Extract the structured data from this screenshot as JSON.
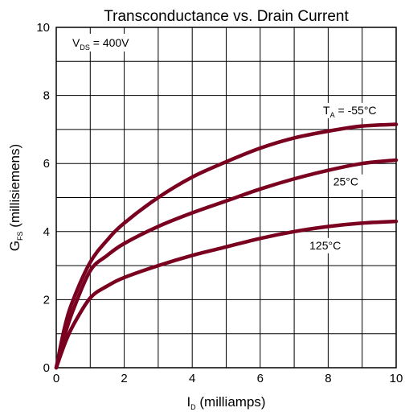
{
  "chart_data": {
    "type": "line",
    "title": "Transconductance vs. Drain Current",
    "xlabel": {
      "main": "I",
      "sub": "D",
      "rest": " (milliamps)"
    },
    "ylabel": {
      "main": "G",
      "sub": "FS",
      "rest": " (millisiemens)"
    },
    "xlim": [
      0,
      10
    ],
    "ylim": [
      0,
      10
    ],
    "x_ticks": [
      "0",
      "2",
      "4",
      "6",
      "8",
      "10"
    ],
    "y_ticks": [
      "0",
      "2",
      "4",
      "6",
      "8",
      "10"
    ],
    "grid": true,
    "condition": {
      "main": "V",
      "sub": "DS",
      "rest": " = 400V"
    },
    "series": [
      {
        "name": "-55°C",
        "label": {
          "main": "T",
          "sub": "A",
          "rest": " = -55°C"
        },
        "x": [
          0,
          0.25,
          0.5,
          1,
          1.5,
          2,
          3,
          4,
          5,
          6,
          7,
          8,
          9,
          10
        ],
        "y": [
          0,
          1.2,
          2.0,
          3.1,
          3.75,
          4.25,
          5.0,
          5.6,
          6.05,
          6.45,
          6.75,
          6.95,
          7.1,
          7.15
        ]
      },
      {
        "name": "25°C",
        "label": {
          "main": "25°C",
          "sub": "",
          "rest": ""
        },
        "x": [
          0,
          0.25,
          0.5,
          1,
          1.5,
          2,
          3,
          4,
          5,
          6,
          7,
          8,
          9,
          10
        ],
        "y": [
          0,
          0.95,
          1.7,
          2.85,
          3.3,
          3.65,
          4.15,
          4.55,
          4.9,
          5.25,
          5.55,
          5.8,
          6.0,
          6.1
        ]
      },
      {
        "name": "125°C",
        "label": {
          "main": "125°C",
          "sub": "",
          "rest": ""
        },
        "x": [
          0,
          0.25,
          0.5,
          1,
          1.5,
          2,
          3,
          4,
          5,
          6,
          7,
          8,
          9,
          10
        ],
        "y": [
          0,
          0.7,
          1.25,
          2.05,
          2.4,
          2.65,
          3.0,
          3.3,
          3.55,
          3.8,
          4.0,
          4.15,
          4.25,
          4.3
        ]
      }
    ],
    "line_color": "#7a0020"
  }
}
